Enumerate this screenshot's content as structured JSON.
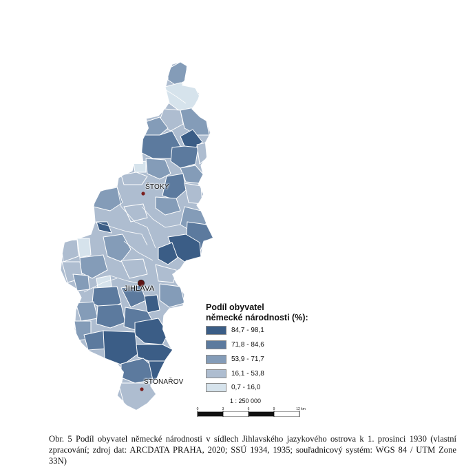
{
  "colors": {
    "class_5": "#3b5d86",
    "class_4": "#5c7a9e",
    "class_3": "#849cb8",
    "class_2": "#aebdd0",
    "class_1": "#d6e3ec",
    "border": "#ffffff",
    "town_marker": "#7a1e1e"
  },
  "towns": [
    {
      "id": "stoky",
      "label": "ŠTOKY",
      "marker": "town-dot"
    },
    {
      "id": "jihlava",
      "label": "JIHLAVA",
      "marker": "city-dot"
    },
    {
      "id": "stonarov",
      "label": "STONAŘOV",
      "marker": "town-dot"
    }
  ],
  "legend": {
    "title_line1": "Podíl obyvatel",
    "title_line2": "německé národnosti (%):",
    "classes": [
      {
        "label": "84,7 - 98,1",
        "color": "#3b5d86"
      },
      {
        "label": "71,8 - 84,6",
        "color": "#5c7a9e"
      },
      {
        "label": "53,9 - 71,7",
        "color": "#849cb8"
      },
      {
        "label": "16,1 - 53,8",
        "color": "#aebdd0"
      },
      {
        "label": "0,7 - 16,0",
        "color": "#d6e3ec"
      }
    ]
  },
  "scale": {
    "ratio": "1 : 250 000",
    "ticks": [
      "0",
      "3",
      "6",
      "9",
      "12 km"
    ]
  },
  "caption": "Obr. 5 Podíl obyvatel německé národnosti v sídlech Jihlavského jazykového ostrova k 1. prosinci 1930 (vlastní zpracování; zdroj dat: ARCDATA PRAHA, 2020; SSÚ 1934, 1935; souřadnicový systém: WGS 84 / UTM Zone 33N)"
}
